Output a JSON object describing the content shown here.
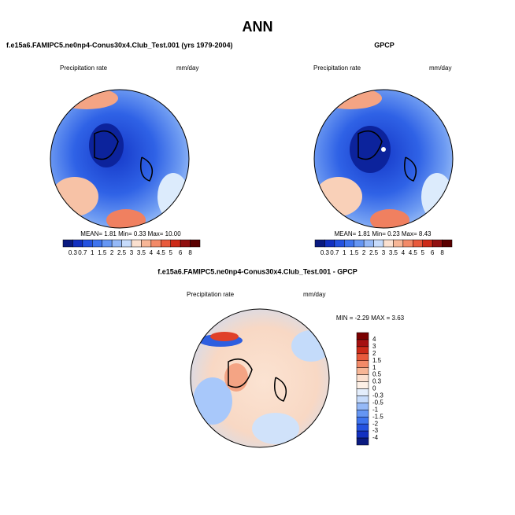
{
  "header": {
    "title": "ANN"
  },
  "panels": [
    {
      "title": "f.e15a6.FAMIPC5.ne0np4-Conus30x4.Club_Test.001 (yrs 1979-2004)",
      "left_label": "Precipitation rate",
      "right_label": "mm/day",
      "stats": "MEAN=  1.81  Min=  0.33  Max= 10.00",
      "colorbar_labels": [
        "0.3",
        "0.7",
        "1",
        "1.5",
        "2",
        "2.5",
        "3",
        "3.5",
        "4",
        "4.5",
        "5",
        "6",
        "8"
      ]
    },
    {
      "title": "GPCP",
      "left_label": "Precipitation rate",
      "right_label": "mm/day",
      "stats": "MEAN=  1.81  Min=  0.23  Max=  8.43",
      "colorbar_labels": [
        "0.3",
        "0.7",
        "1",
        "1.5",
        "2",
        "2.5",
        "3",
        "3.5",
        "4",
        "4.5",
        "5",
        "6",
        "8"
      ]
    },
    {
      "title": "f.e15a6.FAMIPC5.ne0np4-Conus30x4.Club_Test.001 - GPCP",
      "left_label": "Precipitation rate",
      "right_label": "mm/day",
      "stats": "MIN = -2.29 MAX =  3.63",
      "colorbar_labels": [
        "4",
        "3",
        "2",
        "1.5",
        "1",
        "0.5",
        "0.3",
        "0",
        "-0.3",
        "-0.5",
        "-1",
        "-1.5",
        "-2",
        "-3",
        "-4"
      ]
    }
  ]
}
